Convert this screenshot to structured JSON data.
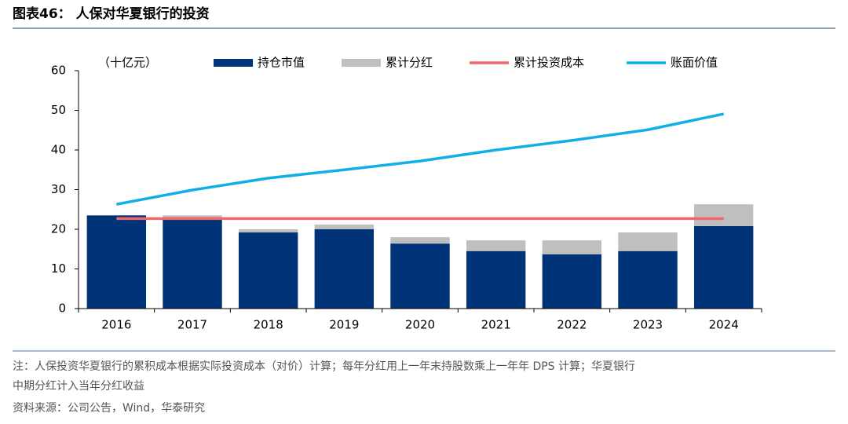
{
  "chart_data": {
    "type": "bar",
    "stacked": true,
    "title": "图表46： 人保对华夏银行的投资",
    "y_label": "（十亿元）",
    "categories": [
      "2016",
      "2017",
      "2018",
      "2019",
      "2020",
      "2021",
      "2022",
      "2023",
      "2024"
    ],
    "series": [
      {
        "name": "持仓市值",
        "type": "bar",
        "color": "#003377",
        "values": [
          23.5,
          23.0,
          19.2,
          20.0,
          16.4,
          14.5,
          13.7,
          14.5,
          20.8
        ]
      },
      {
        "name": "累计分红",
        "type": "bar",
        "color": "#bfbfbf",
        "values": [
          0,
          0.5,
          0.8,
          1.2,
          1.6,
          2.7,
          3.5,
          4.7,
          5.5
        ]
      },
      {
        "name": "累计投资成本",
        "type": "line",
        "color": "#f0686b",
        "values": [
          22.7,
          22.7,
          22.7,
          22.7,
          22.7,
          22.7,
          22.7,
          22.7,
          22.7
        ]
      },
      {
        "name": "账面价值",
        "type": "line",
        "color": "#12aee8",
        "values": [
          26.3,
          29.9,
          32.9,
          35.0,
          37.2,
          40.0,
          42.4,
          45.1,
          49.1
        ]
      }
    ],
    "ylim": [
      0,
      60
    ],
    "yticks": [
      0,
      10,
      20,
      30,
      40,
      50,
      60
    ],
    "grid": false,
    "legend": "top"
  },
  "notes": [
    "注：人保投资华夏银行的累积成本根据实际投资成本（对价）计算；每年分红用上一年末持股数乘上一年年 DPS 计算；华夏银行",
    "中期分红计入当年分红收益"
  ],
  "source": "资料来源：公司公告，Wind，华泰研究"
}
